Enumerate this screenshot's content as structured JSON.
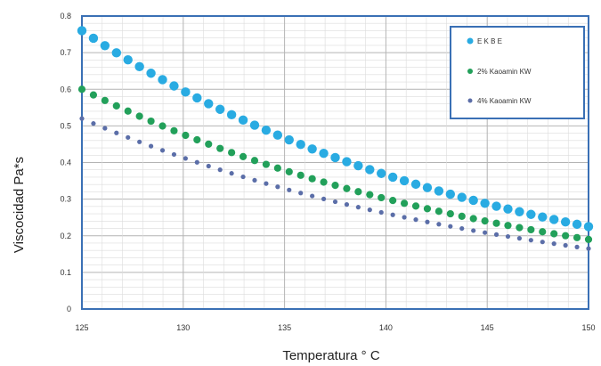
{
  "chart_data": {
    "type": "scatter",
    "xlabel": "Temperatura ° C",
    "ylabel": "Viscocidad Pa*s",
    "xlim": [
      125,
      150
    ],
    "ylim": [
      0,
      0.8
    ],
    "x_ticks": [
      "125",
      "130",
      "135",
      "140",
      "145",
      "150"
    ],
    "y_ticks": [
      "0",
      "0.1",
      "0.2",
      "0.3",
      "0.4",
      "0.5",
      "0.6",
      "0.7",
      "0.8"
    ],
    "grid": true,
    "legend_position": "top-right",
    "series": [
      {
        "name": "E K B E",
        "color": "#29abe2",
        "marker": "large-dot",
        "x_start": 125,
        "x_end": 150,
        "y_start": 0.76,
        "y_end": 0.225,
        "points": 45
      },
      {
        "name": "2% Kaoamin KW",
        "color": "#22a05a",
        "marker": "medium-dot",
        "x_start": 125,
        "x_end": 150,
        "y_start": 0.6,
        "y_end": 0.19,
        "points": 45
      },
      {
        "name": "4% Kaoamin KW",
        "color": "#5b6ea8",
        "marker": "small-dot",
        "x_start": 125,
        "x_end": 150,
        "y_start": 0.52,
        "y_end": 0.165,
        "points": 45
      }
    ]
  }
}
